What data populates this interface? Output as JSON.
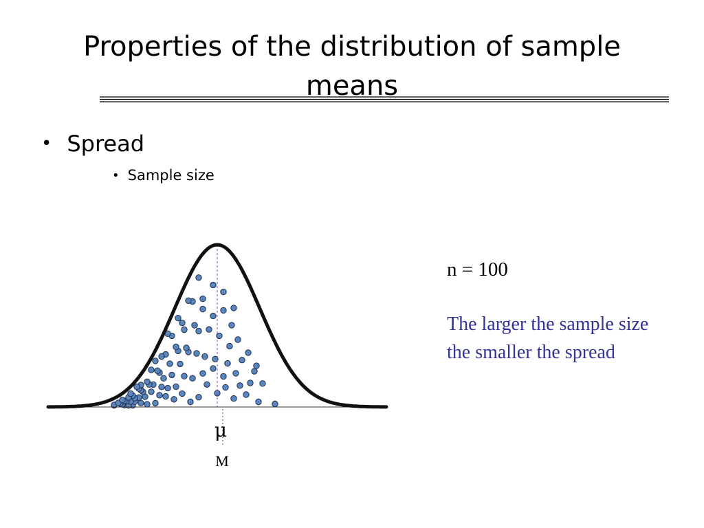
{
  "slide": {
    "title": "Properties of the distribution of sample means",
    "bullet_1": "Spread",
    "bullet_2": "Sample size",
    "bullet_char": "•"
  },
  "annotation": {
    "sample_size_label": "n = 100",
    "caption": "The larger the sample size the smaller the spread",
    "caption_color": "#33339a"
  },
  "colors": {
    "curve": "#111111",
    "dot_fill": "#5b86bd",
    "dot_stroke": "#1b2d4d",
    "mu_line": "#8a3cc4"
  },
  "chart_data": {
    "type": "scatter",
    "title": "",
    "xlabel": "",
    "ylabel": "",
    "mean_symbol": "μ",
    "mean_label": "M",
    "curve": "normal",
    "n": 100,
    "points": [
      [
        0.11,
        0.02
      ],
      [
        0.07,
        0.06
      ],
      [
        0.02,
        0.16
      ],
      [
        0.06,
        0.2
      ],
      [
        0.09,
        0.02
      ],
      [
        0.12,
        0.22
      ],
      [
        0.15,
        0.1
      ],
      [
        0.18,
        0.04
      ],
      [
        0.22,
        0.05
      ],
      [
        0.24,
        0.18
      ],
      [
        0.27,
        0.13
      ],
      [
        0.31,
        0.07
      ],
      [
        0.35,
        0.11
      ],
      [
        0.39,
        0.03
      ],
      [
        0.43,
        0.06
      ],
      [
        0.47,
        0.14
      ],
      [
        0.52,
        0.08
      ],
      [
        0.56,
        0.12
      ],
      [
        0.6,
        0.05
      ],
      [
        0.66,
        0.09
      ],
      [
        0.72,
        0.04
      ],
      [
        0.8,
        0.03
      ],
      [
        0.63,
        0.15
      ],
      [
        0.55,
        0.19
      ],
      [
        0.5,
        0.24
      ],
      [
        0.45,
        0.22
      ],
      [
        0.4,
        0.21
      ],
      [
        0.36,
        0.26
      ],
      [
        0.32,
        0.2
      ],
      [
        0.28,
        0.23
      ],
      [
        0.25,
        0.3
      ],
      [
        0.2,
        0.33
      ],
      [
        0.17,
        0.28
      ],
      [
        0.14,
        0.35
      ],
      [
        0.1,
        0.3
      ],
      [
        0.05,
        0.38
      ],
      [
        0.02,
        0.4
      ],
      [
        0.08,
        0.45
      ],
      [
        0.12,
        0.42
      ],
      [
        0.16,
        0.48
      ],
      [
        0.21,
        0.46
      ],
      [
        0.26,
        0.41
      ],
      [
        0.3,
        0.36
      ],
      [
        0.34,
        0.4
      ],
      [
        0.38,
        0.44
      ],
      [
        0.42,
        0.38
      ],
      [
        0.46,
        0.33
      ],
      [
        0.51,
        0.3
      ],
      [
        0.57,
        0.28
      ],
      [
        0.61,
        0.23
      ],
      [
        0.68,
        0.2
      ],
      [
        0.74,
        0.26
      ],
      [
        0.7,
        0.33
      ],
      [
        0.64,
        0.35
      ],
      [
        0.58,
        0.4
      ],
      [
        0.53,
        0.45
      ],
      [
        0.48,
        0.5
      ],
      [
        0.43,
        0.53
      ],
      [
        0.37,
        0.49
      ],
      [
        0.33,
        0.55
      ],
      [
        0.29,
        0.52
      ],
      [
        0.24,
        0.57
      ],
      [
        0.19,
        0.55
      ],
      [
        0.15,
        0.6
      ],
      [
        0.11,
        0.63
      ],
      [
        0.07,
        0.58
      ],
      [
        0.04,
        0.66
      ],
      [
        0.09,
        0.7
      ],
      [
        0.14,
        0.74
      ],
      [
        0.18,
        0.68
      ],
      [
        0.23,
        0.65
      ],
      [
        0.27,
        0.72
      ],
      [
        0.32,
        0.62
      ],
      [
        0.36,
        0.67
      ],
      [
        0.41,
        0.6
      ],
      [
        0.45,
        0.66
      ],
      [
        0.5,
        0.58
      ],
      [
        0.55,
        0.62
      ],
      [
        0.59,
        0.55
      ],
      [
        0.62,
        0.48
      ],
      [
        0.67,
        0.45
      ],
      [
        0.71,
        0.4
      ],
      [
        0.6,
        0.68
      ],
      [
        0.55,
        0.74
      ],
      [
        0.5,
        0.78
      ],
      [
        0.45,
        0.73
      ],
      [
        0.4,
        0.8
      ],
      [
        0.35,
        0.76
      ],
      [
        0.3,
        0.82
      ],
      [
        0.25,
        0.79
      ],
      [
        0.2,
        0.85
      ],
      [
        0.15,
        0.8
      ],
      [
        0.1,
        0.88
      ],
      [
        0.06,
        0.84
      ],
      [
        0.13,
        0.92
      ],
      [
        0.22,
        0.9
      ],
      [
        0.28,
        0.95
      ],
      [
        0.33,
        0.88
      ],
      [
        0.38,
        0.86
      ],
      [
        0.43,
        0.91
      ]
    ]
  }
}
